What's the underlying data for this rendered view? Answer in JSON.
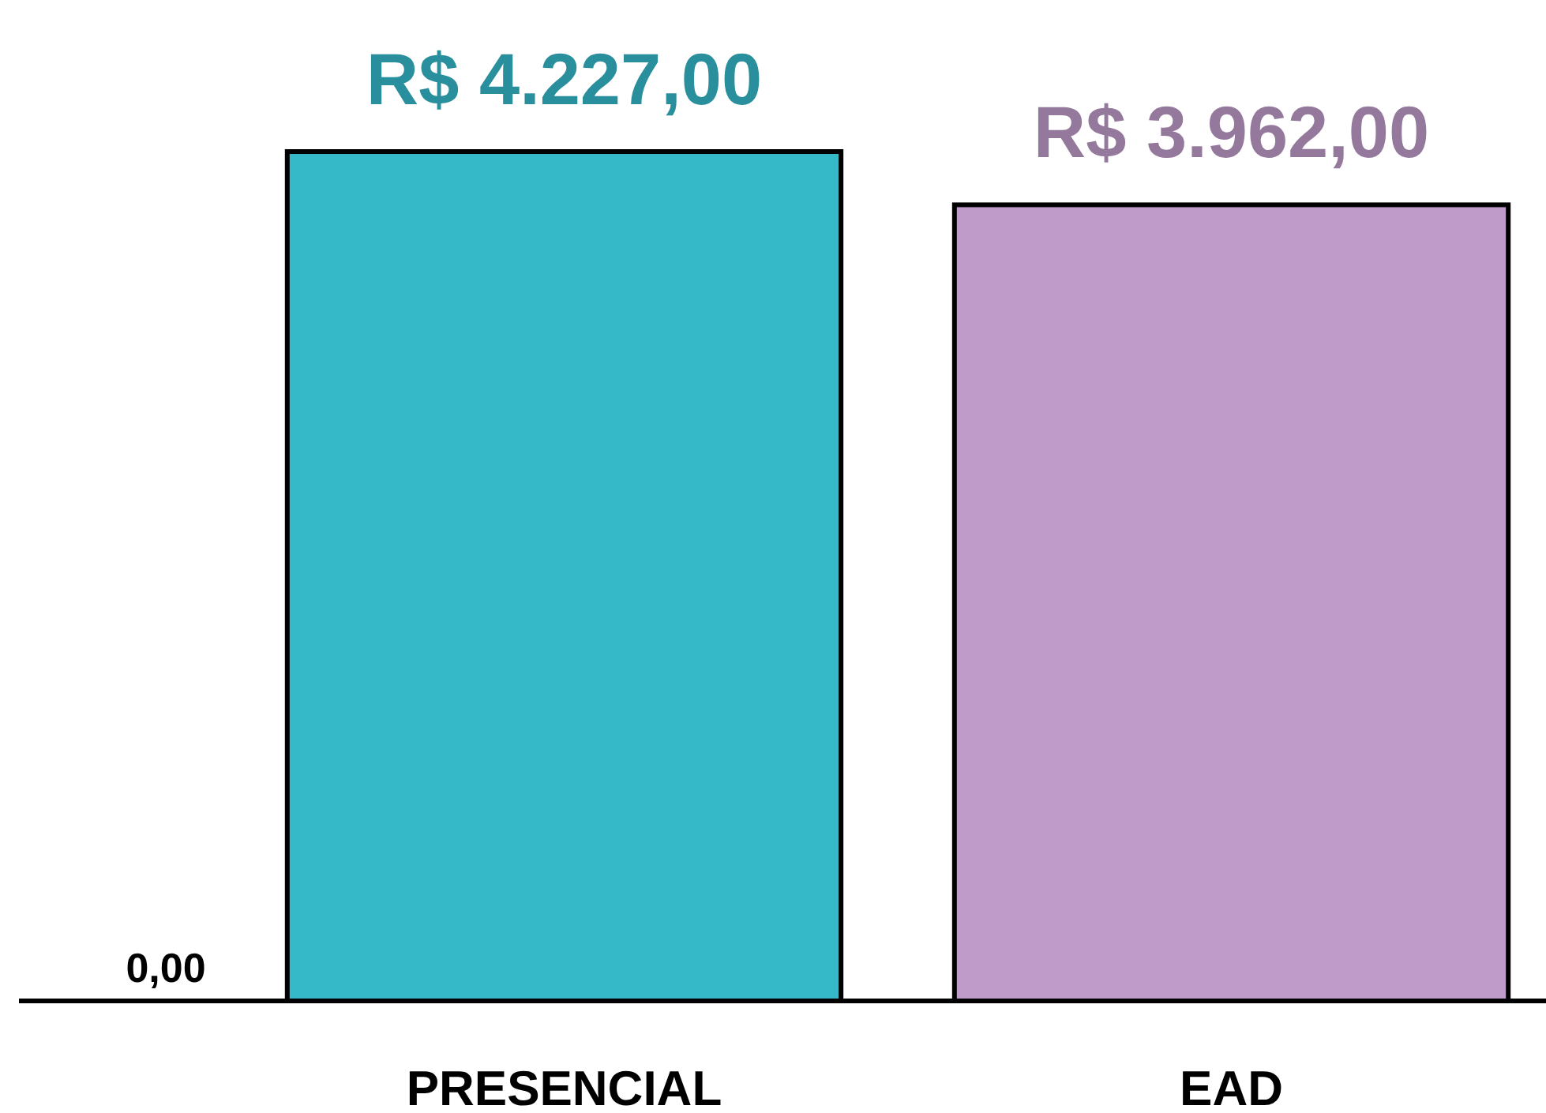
{
  "chart_data": {
    "type": "bar",
    "categories": [
      "PRESENCIAL",
      "EAD"
    ],
    "values": [
      4227,
      3962
    ],
    "colors": [
      "#35b8c8",
      "#bf9bc9"
    ],
    "value_labels": [
      "R$ 4.227,00",
      "R$ 3.962,00"
    ],
    "annotations": [
      "0,00"
    ]
  }
}
